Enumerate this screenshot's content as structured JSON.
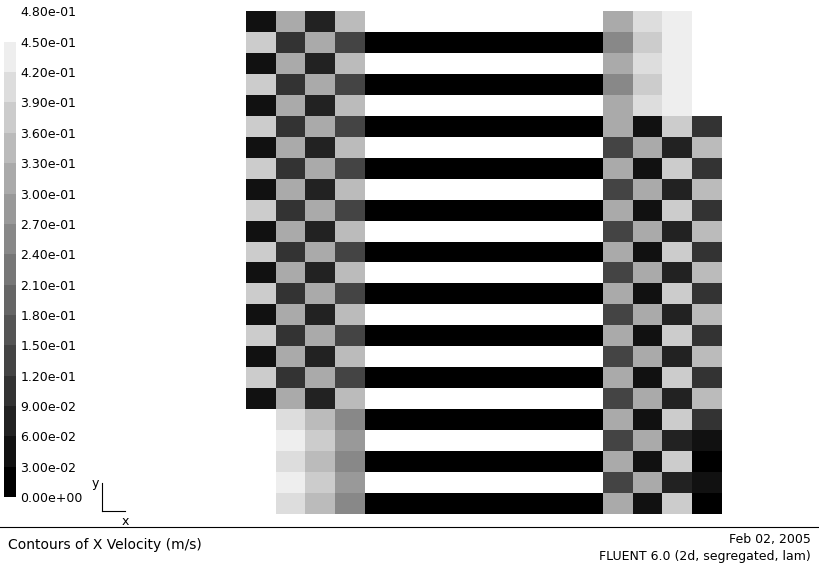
{
  "chart_data": {
    "type": "contour",
    "title": "Contours of X Velocity (m/s)",
    "date": "Feb 02, 2005",
    "software": "FLUENT 6.0 (2d, segregated, lam)",
    "xlabel": "x",
    "ylabel": "y",
    "tick_labels": false,
    "cells": [
      [
        0.03,
        0.3,
        0.06,
        0.33,
        0.45,
        0.45,
        0.45,
        0.45,
        0.45,
        0.45,
        0.45,
        0.45,
        0.3,
        0.39,
        0.42,
        0.45
      ],
      [
        0.36,
        0.09,
        0.3,
        0.12,
        0.0,
        0.0,
        0.0,
        0.0,
        0.0,
        0.0,
        0.0,
        0.0,
        0.24,
        0.36,
        0.42,
        0.48
      ],
      [
        0.03,
        0.3,
        0.06,
        0.33,
        0.45,
        0.45,
        0.45,
        0.45,
        0.45,
        0.45,
        0.45,
        0.45,
        0.3,
        0.39,
        0.42,
        0.45
      ],
      [
        0.36,
        0.09,
        0.3,
        0.12,
        0.0,
        0.0,
        0.0,
        0.0,
        0.0,
        0.0,
        0.0,
        0.0,
        0.24,
        0.36,
        0.42,
        0.48
      ],
      [
        0.03,
        0.3,
        0.06,
        0.33,
        0.45,
        0.45,
        0.45,
        0.45,
        0.45,
        0.45,
        0.45,
        0.45,
        0.3,
        0.39,
        0.42,
        0.45
      ],
      [
        0.36,
        0.09,
        0.3,
        0.12,
        0.0,
        0.0,
        0.0,
        0.0,
        0.0,
        0.0,
        0.0,
        0.0,
        0.3,
        0.03,
        0.36,
        0.09
      ],
      [
        0.03,
        0.3,
        0.06,
        0.33,
        0.45,
        0.45,
        0.45,
        0.45,
        0.45,
        0.45,
        0.45,
        0.45,
        0.12,
        0.3,
        0.06,
        0.33
      ],
      [
        0.36,
        0.09,
        0.3,
        0.12,
        0.0,
        0.0,
        0.0,
        0.0,
        0.0,
        0.0,
        0.0,
        0.0,
        0.3,
        0.03,
        0.36,
        0.09
      ],
      [
        0.03,
        0.3,
        0.06,
        0.33,
        0.45,
        0.45,
        0.45,
        0.45,
        0.45,
        0.45,
        0.45,
        0.45,
        0.12,
        0.3,
        0.06,
        0.33
      ],
      [
        0.36,
        0.09,
        0.3,
        0.12,
        0.0,
        0.0,
        0.0,
        0.0,
        0.0,
        0.0,
        0.0,
        0.0,
        0.3,
        0.03,
        0.36,
        0.09
      ],
      [
        0.03,
        0.3,
        0.06,
        0.33,
        0.45,
        0.45,
        0.45,
        0.45,
        0.45,
        0.45,
        0.45,
        0.45,
        0.12,
        0.3,
        0.06,
        0.33
      ],
      [
        0.36,
        0.09,
        0.3,
        0.12,
        0.0,
        0.0,
        0.0,
        0.0,
        0.0,
        0.0,
        0.0,
        0.0,
        0.3,
        0.03,
        0.36,
        0.09
      ],
      [
        0.03,
        0.3,
        0.06,
        0.33,
        0.45,
        0.45,
        0.45,
        0.45,
        0.45,
        0.45,
        0.45,
        0.45,
        0.12,
        0.3,
        0.06,
        0.33
      ],
      [
        0.36,
        0.09,
        0.3,
        0.12,
        0.0,
        0.0,
        0.0,
        0.0,
        0.0,
        0.0,
        0.0,
        0.0,
        0.3,
        0.03,
        0.36,
        0.09
      ],
      [
        0.03,
        0.3,
        0.06,
        0.33,
        0.45,
        0.45,
        0.45,
        0.45,
        0.45,
        0.45,
        0.45,
        0.45,
        0.12,
        0.3,
        0.06,
        0.33
      ],
      [
        0.36,
        0.09,
        0.3,
        0.12,
        0.0,
        0.0,
        0.0,
        0.0,
        0.0,
        0.0,
        0.0,
        0.0,
        0.3,
        0.03,
        0.36,
        0.09
      ],
      [
        0.03,
        0.3,
        0.06,
        0.33,
        0.45,
        0.45,
        0.45,
        0.45,
        0.45,
        0.45,
        0.45,
        0.45,
        0.12,
        0.3,
        0.06,
        0.33
      ],
      [
        0.36,
        0.09,
        0.3,
        0.12,
        0.0,
        0.0,
        0.0,
        0.0,
        0.0,
        0.0,
        0.0,
        0.0,
        0.3,
        0.03,
        0.36,
        0.09
      ],
      [
        0.03,
        0.3,
        0.06,
        0.33,
        0.45,
        0.45,
        0.45,
        0.45,
        0.45,
        0.45,
        0.45,
        0.45,
        0.12,
        0.3,
        0.06,
        0.33
      ],
      [
        0.48,
        0.39,
        0.33,
        0.24,
        0.0,
        0.0,
        0.0,
        0.0,
        0.0,
        0.0,
        0.0,
        0.0,
        0.3,
        0.03,
        0.36,
        0.09
      ],
      [
        0.45,
        0.42,
        0.36,
        0.27,
        0.45,
        0.45,
        0.45,
        0.45,
        0.45,
        0.45,
        0.45,
        0.45,
        0.12,
        0.3,
        0.06,
        0.03
      ],
      [
        0.48,
        0.39,
        0.33,
        0.24,
        0.0,
        0.0,
        0.0,
        0.0,
        0.0,
        0.0,
        0.0,
        0.0,
        0.3,
        0.03,
        0.36,
        0.0
      ],
      [
        0.45,
        0.42,
        0.36,
        0.27,
        0.45,
        0.45,
        0.45,
        0.45,
        0.45,
        0.45,
        0.45,
        0.45,
        0.12,
        0.3,
        0.06,
        0.03
      ],
      [
        0.48,
        0.39,
        0.33,
        0.24,
        0.0,
        0.0,
        0.0,
        0.0,
        0.0,
        0.0,
        0.0,
        0.0,
        0.3,
        0.03,
        0.36,
        0.0
      ]
    ],
    "colorbar": {
      "range": [
        0,
        0.48
      ],
      "ticks": [
        {
          "value": 0,
          "label": "0.00e+00"
        },
        {
          "value": 0.03,
          "label": "3.00e-02"
        },
        {
          "value": 0.06,
          "label": "6.00e-02"
        },
        {
          "value": 0.09,
          "label": "9.00e-02"
        },
        {
          "value": 0.12,
          "label": "1.20e-01"
        },
        {
          "value": 0.15,
          "label": "1.50e-01"
        },
        {
          "value": 0.18,
          "label": "1.80e-01"
        },
        {
          "value": 0.21,
          "label": "2.10e-01"
        },
        {
          "value": 0.24,
          "label": "2.40e-01"
        },
        {
          "value": 0.27,
          "label": "2.70e-01"
        },
        {
          "value": 0.3,
          "label": "3.00e-01"
        },
        {
          "value": 0.33,
          "label": "3.30e-01"
        },
        {
          "value": 0.36,
          "label": "3.60e-01"
        },
        {
          "value": 0.39,
          "label": "3.90e-01"
        },
        {
          "value": 0.42,
          "label": "4.20e-01"
        },
        {
          "value": 0.45,
          "label": "4.50e-01"
        },
        {
          "value": 0.48,
          "label": "4.80e-01"
        }
      ]
    }
  }
}
